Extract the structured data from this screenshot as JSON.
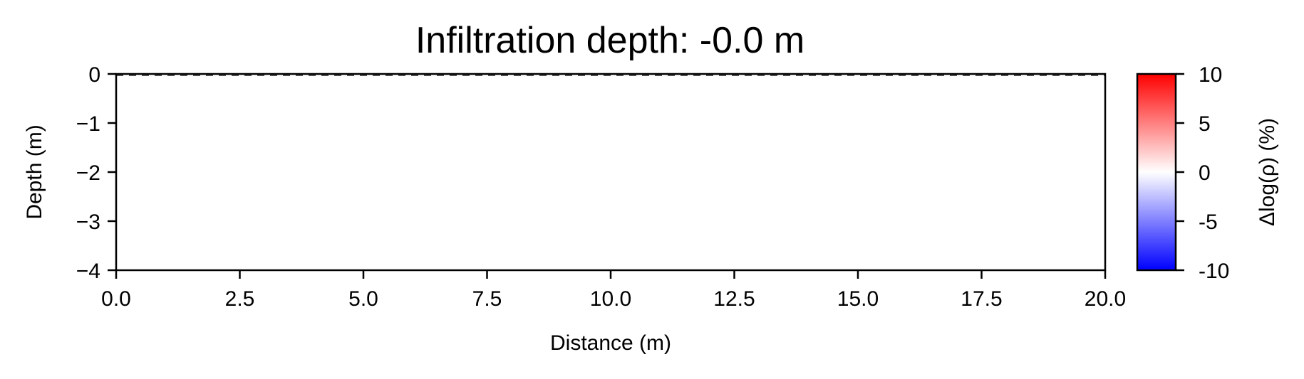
{
  "chart_data": {
    "type": "heatmap",
    "title": "Infiltration depth: -0.0 m",
    "xlabel": "Distance (m)",
    "ylabel": "Depth (m)",
    "xlim": [
      0,
      20
    ],
    "ylim": [
      -4,
      0
    ],
    "x_ticks": [
      "0.0",
      "2.5",
      "5.0",
      "7.5",
      "10.0",
      "12.5",
      "15.0",
      "17.5",
      "20.0"
    ],
    "y_ticks": [
      "0",
      "−1",
      "−2",
      "−3",
      "−4"
    ],
    "x_tick_values": [
      0,
      2.5,
      5,
      7.5,
      10,
      12.5,
      15,
      17.5,
      20
    ],
    "y_tick_values": [
      0,
      -1,
      -2,
      -3,
      -4
    ],
    "field_value": 0,
    "infiltration_depth": 0,
    "grid": false,
    "colorbar": {
      "label": "Δlog(ρ) (%)",
      "range": [
        -10,
        10
      ],
      "ticks": [
        "10",
        "5",
        "0",
        "-5",
        "-10"
      ],
      "tick_values": [
        10,
        5,
        0,
        -5,
        -10
      ],
      "colormap": "bwr",
      "colors": [
        "#0000ff",
        "#ffffff",
        "#ff0000"
      ]
    }
  }
}
